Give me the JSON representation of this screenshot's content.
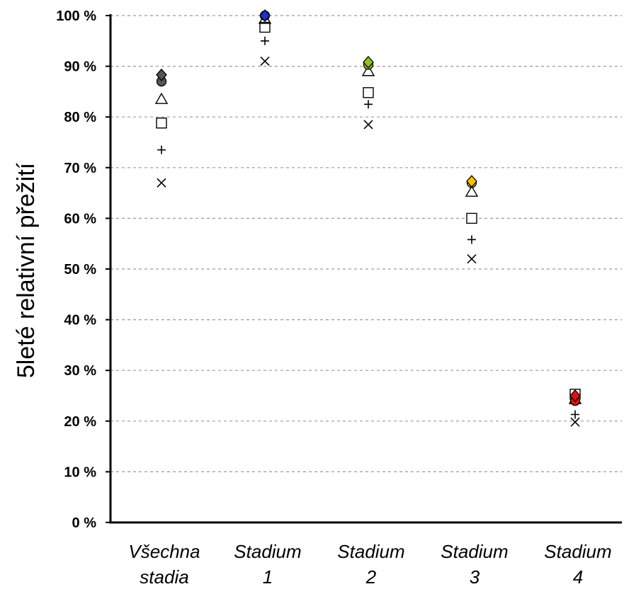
{
  "chart_data": {
    "type": "scatter",
    "ylabel": "5leté relativní přežití",
    "ylim": [
      0,
      100
    ],
    "y_ticks": [
      "0 %",
      "10 %",
      "20 %",
      "30 %",
      "40 %",
      "50 %",
      "60 %",
      "70 %",
      "80 %",
      "90 %",
      "100 %"
    ],
    "grid": true,
    "categories": [
      [
        "Všechna",
        "stadia"
      ],
      [
        "Stadium",
        "1"
      ],
      [
        "Stadium",
        "2"
      ],
      [
        "Stadium",
        "3"
      ],
      [
        "Stadium",
        "4"
      ]
    ],
    "category_colors": [
      "#555555",
      "#1f2fd0",
      "#8fc21f",
      "#f5c200",
      "#e01010"
    ],
    "series": [
      {
        "marker": "diamond",
        "filled": true,
        "values": [
          88.3,
          100,
          90.8,
          67.3,
          25.0
        ]
      },
      {
        "marker": "circle",
        "filled": true,
        "values": [
          87.0,
          100,
          90.3,
          67.0,
          24.0
        ]
      },
      {
        "marker": "triangle",
        "filled": false,
        "values": [
          83.5,
          99.3,
          89.0,
          65.2,
          24.3
        ]
      },
      {
        "marker": "square",
        "filled": false,
        "values": [
          78.8,
          97.7,
          84.8,
          60.0,
          25.3
        ]
      },
      {
        "marker": "plus",
        "filled": false,
        "values": [
          73.5,
          95.0,
          82.5,
          55.8,
          21.3
        ]
      },
      {
        "marker": "cross",
        "filled": false,
        "values": [
          67.0,
          91.0,
          78.5,
          52.0,
          19.8
        ]
      }
    ]
  }
}
